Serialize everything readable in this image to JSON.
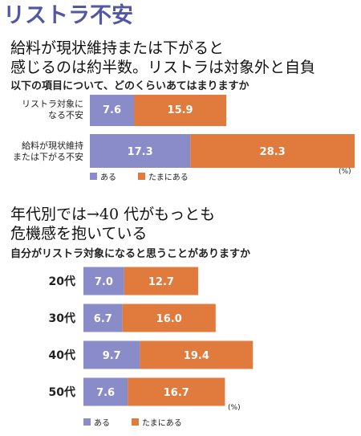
{
  "page_title": "リストラ不安",
  "section1": {
    "headline_line1": "給料が現状維持または下がると",
    "headline_line2": "感じるのは約半数。リストラは対象外と自負",
    "question": "以下の項目について、どのくらいあてはまりますか"
  },
  "section2": {
    "headline_line1": "年代別では→40 代がもっとも",
    "headline_line2": "危機感を抱いている",
    "question": "自分がリストラ対象になると思うことがありますか"
  },
  "colors": {
    "aru": "#8a8cc9",
    "tamani": "#e07a3d",
    "title": "#5357a3"
  },
  "chart_data": [
    {
      "type": "bar",
      "orientation": "horizontal",
      "stacked": true,
      "categories": [
        [
          "リストラ対象に",
          "なる不安"
        ],
        [
          "給料が現状維持",
          "または下がる不安"
        ]
      ],
      "series": [
        {
          "name": "ある",
          "values": [
            7.6,
            17.3
          ]
        },
        {
          "name": "たまにある",
          "values": [
            15.9,
            28.3
          ]
        }
      ],
      "unit": "(%)",
      "legend": "bottom-left"
    },
    {
      "type": "bar",
      "orientation": "horizontal",
      "stacked": true,
      "categories": [
        "20代",
        "30代",
        "40代",
        "50代"
      ],
      "series": [
        {
          "name": "ある",
          "values": [
            7.0,
            6.7,
            9.7,
            7.6
          ]
        },
        {
          "name": "たまにある",
          "values": [
            12.7,
            16.0,
            19.4,
            16.7
          ]
        }
      ],
      "unit": "(%)",
      "legend": "bottom-left"
    }
  ]
}
